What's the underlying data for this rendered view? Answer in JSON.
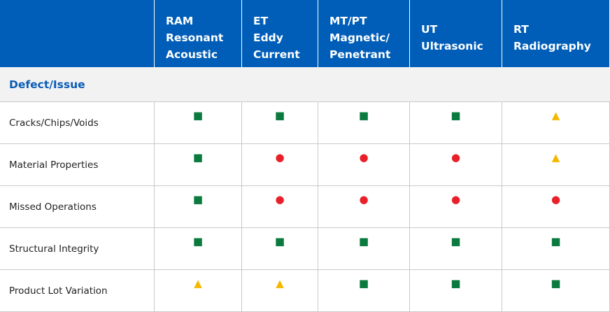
{
  "header": {
    "corner": "",
    "columns": [
      "RAM\nResonant\nAcoustic",
      "ET\nEddy\nCurrent",
      "MT/PT\nMagnetic/\nPenetrant",
      "UT\nUltrasonic",
      "RT\nRadiography"
    ]
  },
  "section": "Defect/Issue",
  "symbol_colors": {
    "■": "#0b7a3e",
    "●": "#e8202a",
    "▲": "#f5b800"
  },
  "rows": [
    {
      "label": "Cracks/Chips/Voids",
      "cells": [
        "■",
        "■",
        "■",
        "■",
        "▲"
      ]
    },
    {
      "label": "Material Properties",
      "cells": [
        "■",
        "●",
        "●",
        "●",
        "▲"
      ]
    },
    {
      "label": "Missed Operations",
      "cells": [
        "■",
        "●",
        "●",
        "●",
        "●"
      ]
    },
    {
      "label": "Structural Integrity",
      "cells": [
        "■",
        "■",
        "■",
        "■",
        "■"
      ]
    },
    {
      "label": "Product Lot Variation",
      "cells": [
        "▲",
        "▲",
        "■",
        "■",
        "■"
      ]
    }
  ]
}
